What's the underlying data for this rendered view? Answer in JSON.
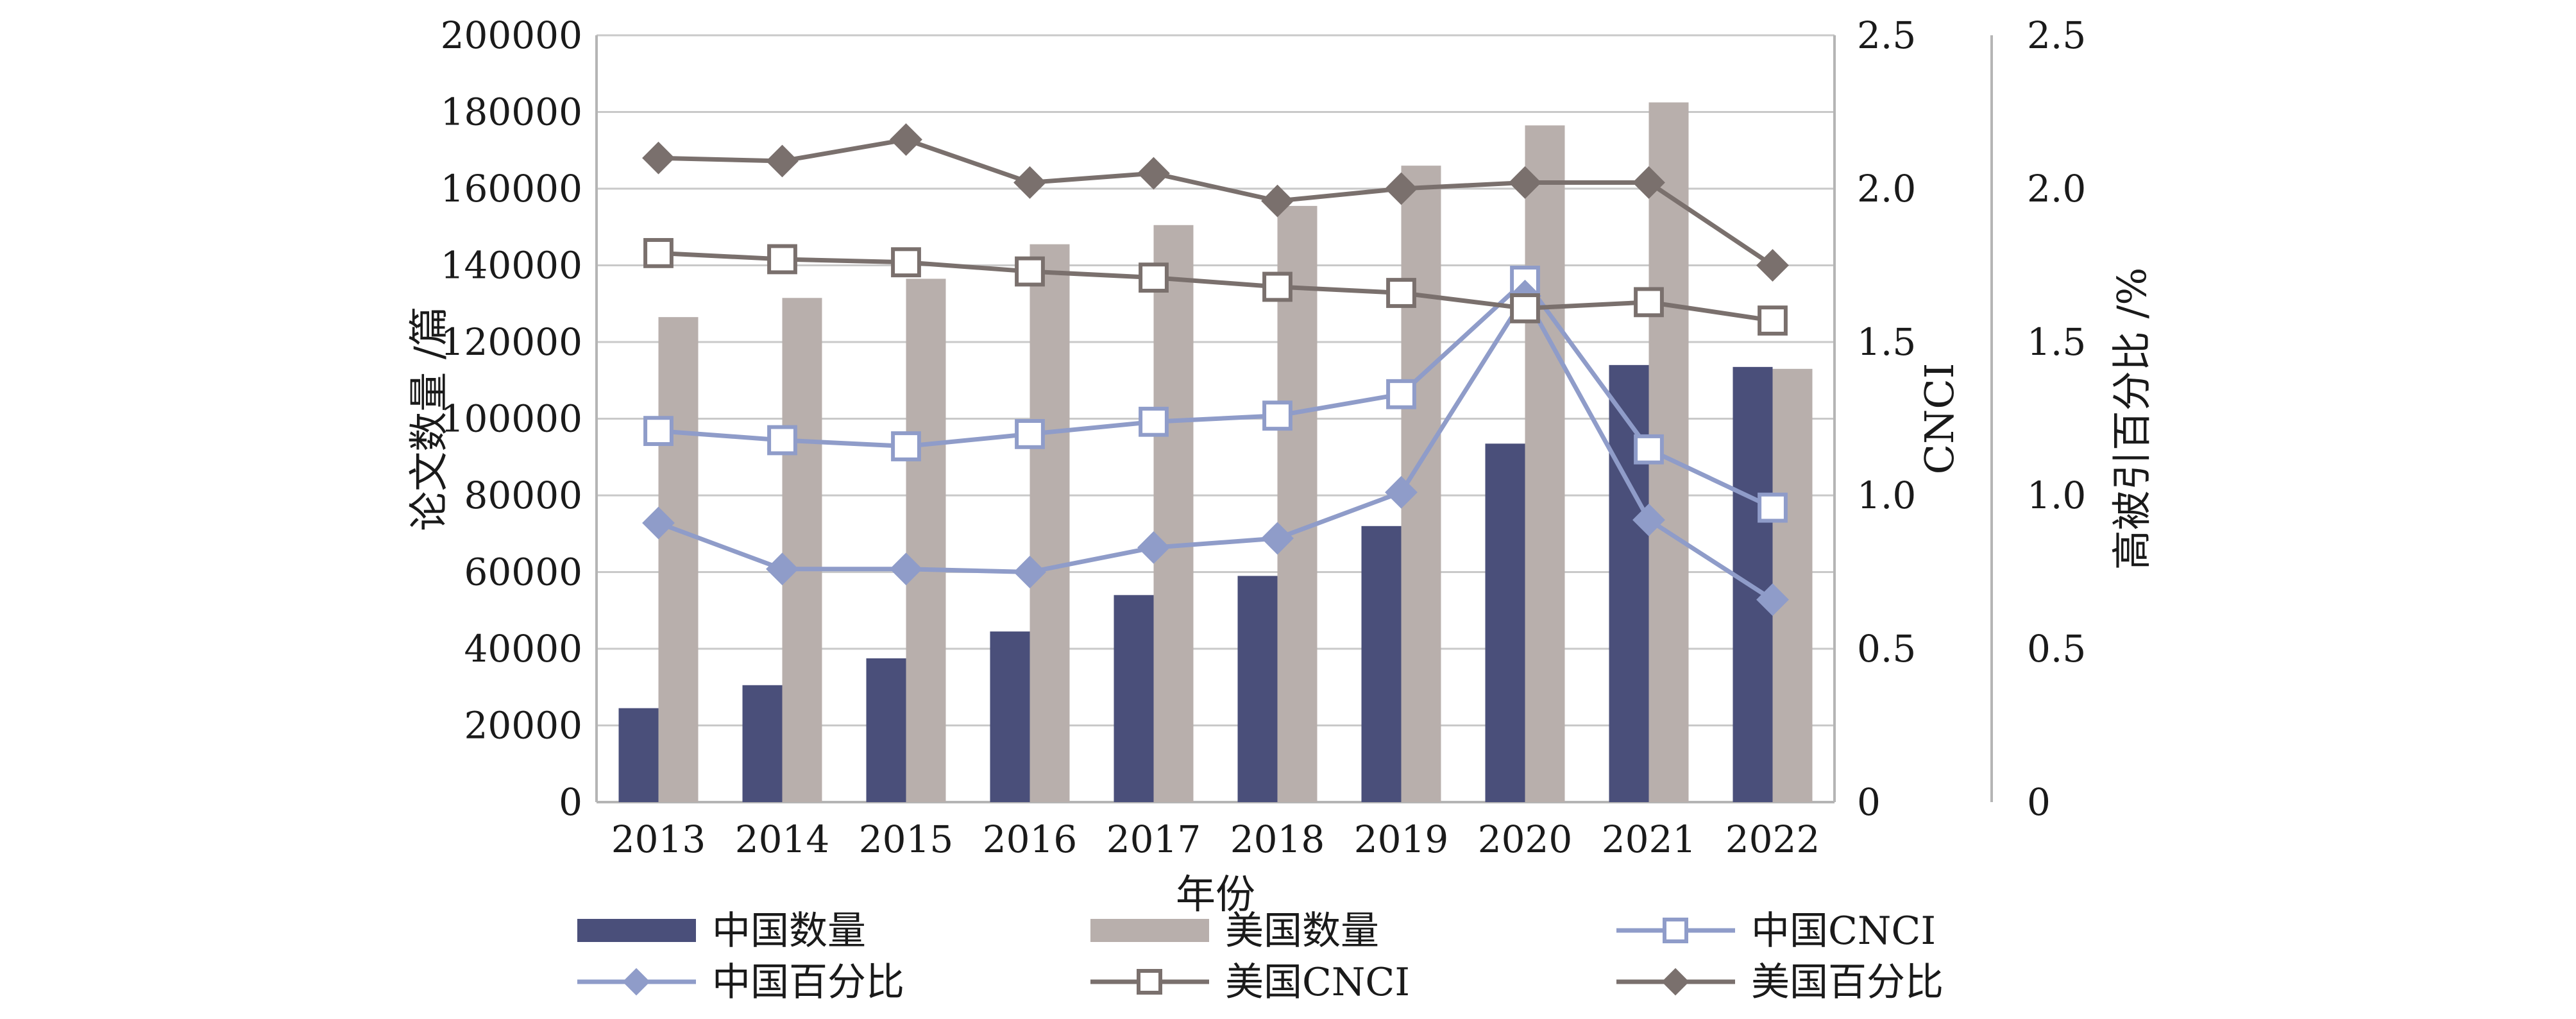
{
  "chart_data": {
    "type": "bar",
    "categories": [
      "2013",
      "2014",
      "2015",
      "2016",
      "2017",
      "2018",
      "2019",
      "2020",
      "2021",
      "2022"
    ],
    "xlabel": "年份",
    "ylabel_left": "论文数量 /篇",
    "ylabel_right1": "CNCI",
    "ylabel_right2": "高被引百分比 /%",
    "ylim_left": [
      0,
      200000
    ],
    "ylim_right1": [
      0,
      2.5
    ],
    "ylim_right2": [
      0,
      2.5
    ],
    "yticks_left": [
      "0",
      "20000",
      "40000",
      "60000",
      "80000",
      "100000",
      "120000",
      "140000",
      "160000",
      "180000",
      "200000"
    ],
    "yticks_right1": [
      "0",
      "0.5",
      "1.0",
      "1.5",
      "2.0",
      "2.5"
    ],
    "yticks_right2": [
      "0",
      "0.5",
      "1.0",
      "1.5",
      "2.0",
      "2.5"
    ],
    "grid": true,
    "legend_position": "bottom",
    "series": [
      {
        "name": "中国数量",
        "kind": "bar",
        "axis": "left",
        "color": "#4a4f7a",
        "values": [
          24500,
          30500,
          37500,
          44500,
          54000,
          59000,
          72000,
          93500,
          114000,
          113500
        ]
      },
      {
        "name": "美国数量",
        "kind": "bar",
        "axis": "left",
        "color": "#b8afac",
        "values": [
          126500,
          131500,
          136500,
          145500,
          150500,
          155500,
          166000,
          176500,
          182500,
          113000
        ]
      },
      {
        "name": "中国CNCI",
        "kind": "line",
        "axis": "right1",
        "marker": "square-open",
        "color": "#8f9cc9",
        "values": [
          1.21,
          1.18,
          1.16,
          1.2,
          1.24,
          1.26,
          1.33,
          1.7,
          1.15,
          0.96
        ]
      },
      {
        "name": "中国百分比",
        "kind": "line",
        "axis": "right2",
        "marker": "diamond",
        "color": "#8f9cc9",
        "values": [
          0.91,
          0.76,
          0.76,
          0.75,
          0.83,
          0.86,
          1.01,
          1.65,
          0.92,
          0.66
        ]
      },
      {
        "name": "美国CNCI",
        "kind": "line",
        "axis": "right1",
        "marker": "square-open",
        "color": "#7a706d",
        "values": [
          1.79,
          1.77,
          1.76,
          1.73,
          1.71,
          1.68,
          1.66,
          1.61,
          1.63,
          1.57
        ]
      },
      {
        "name": "美国百分比",
        "kind": "line",
        "axis": "right2",
        "marker": "diamond",
        "color": "#7a706d",
        "values": [
          2.1,
          2.09,
          2.16,
          2.02,
          2.05,
          1.96,
          2.0,
          2.02,
          2.02,
          1.75
        ]
      }
    ],
    "legend": [
      {
        "label": "中国数量",
        "series": 0
      },
      {
        "label": "美国数量",
        "series": 1
      },
      {
        "label": "中国CNCI",
        "series": 2
      },
      {
        "label": "中国百分比",
        "series": 3
      },
      {
        "label": "美国CNCI",
        "series": 4
      },
      {
        "label": "美国百分比",
        "series": 5
      }
    ]
  }
}
